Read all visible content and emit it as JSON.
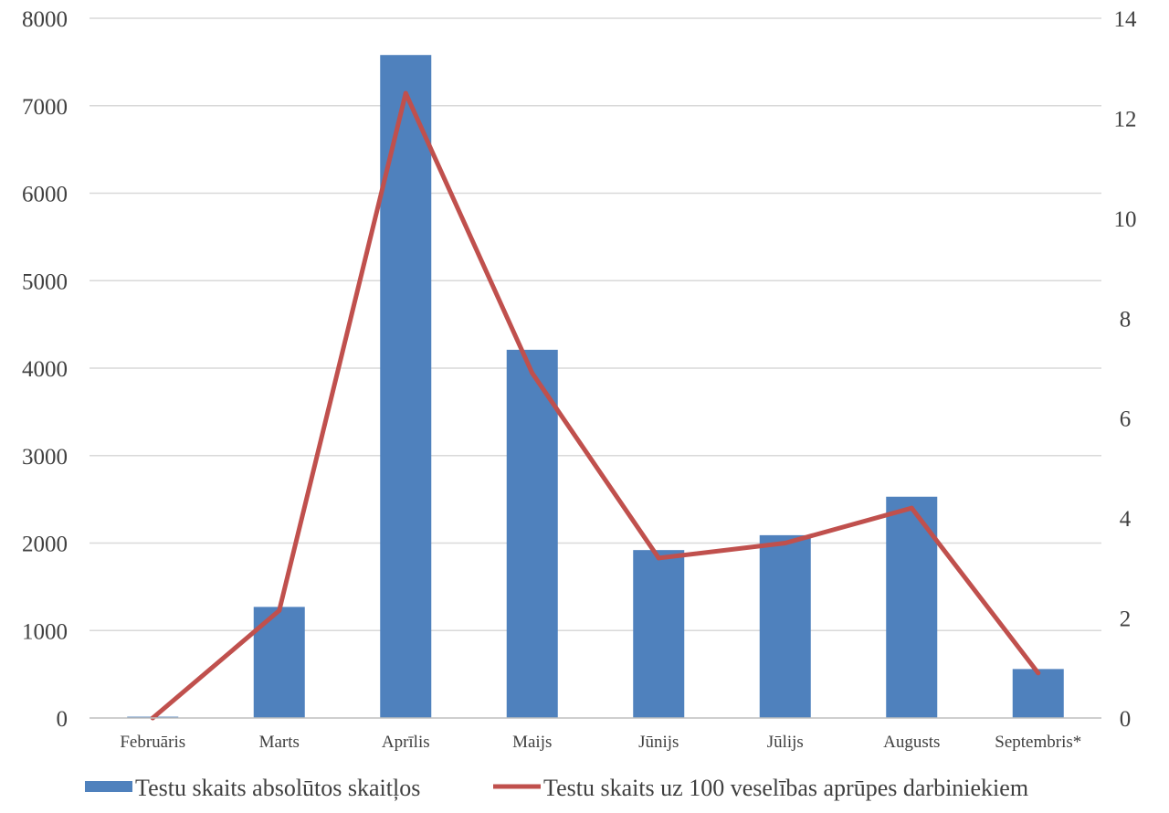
{
  "chart_data": {
    "type": "bar",
    "categories": [
      "Februāris",
      "Marts",
      "Aprīlis",
      "Maijs",
      "Jūnijs",
      "Jūlijs",
      "Augusts",
      "Septembris*"
    ],
    "series": [
      {
        "name": "Testu skaits absolūtos skaitļos",
        "type": "bar",
        "axis": "left",
        "color": "#4f81bd",
        "values": [
          15,
          1270,
          7580,
          4210,
          1920,
          2090,
          2530,
          560
        ]
      },
      {
        "name": "Testu skaits uz 100 veselības aprūpes darbiniekiem",
        "type": "line",
        "axis": "right",
        "color": "#c0504d",
        "values": [
          0.0,
          2.15,
          12.5,
          6.9,
          3.2,
          3.5,
          4.2,
          0.9
        ]
      }
    ],
    "ylim_left": [
      0,
      8000
    ],
    "ylim_right": [
      0,
      14
    ],
    "yticks_left": [
      "0",
      "1000",
      "2000",
      "3000",
      "4000",
      "5000",
      "6000",
      "7000",
      "8000"
    ],
    "yticks_right": [
      "0",
      "2",
      "4",
      "6",
      "8",
      "10",
      "12",
      "14"
    ],
    "grid": true,
    "legend_position": "bottom"
  }
}
